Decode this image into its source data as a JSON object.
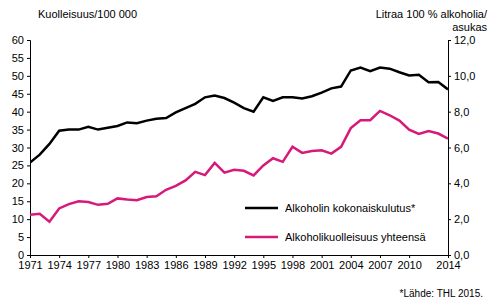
{
  "chart_data": {
    "type": "line",
    "y_label": "Kuolleisuus/100 000",
    "y2_label": [
      "Litraa 100 % alkoholia/",
      "asukas"
    ],
    "annotation": "*Lähde: THL 2015.",
    "x": [
      1971,
      1972,
      1973,
      1974,
      1975,
      1976,
      1977,
      1978,
      1979,
      1980,
      1981,
      1982,
      1983,
      1984,
      1985,
      1986,
      1987,
      1988,
      1989,
      1990,
      1991,
      1992,
      1993,
      1994,
      1995,
      1996,
      1997,
      1998,
      1999,
      2000,
      2001,
      2002,
      2003,
      2004,
      2005,
      2006,
      2007,
      2008,
      2009,
      2010,
      2011,
      2012,
      2013,
      2014
    ],
    "xlim": [
      1971,
      2014
    ],
    "xticks": [
      1971,
      1974,
      1977,
      1980,
      1983,
      1986,
      1989,
      1992,
      1995,
      1998,
      2001,
      2004,
      2007,
      2010,
      2014
    ],
    "ylim": [
      0,
      60
    ],
    "yticks": [
      0,
      5,
      10,
      15,
      20,
      25,
      30,
      35,
      40,
      45,
      50,
      55,
      60
    ],
    "y2lim": [
      0,
      12
    ],
    "y2ticks": [
      {
        "value": 0,
        "label": "0,0"
      },
      {
        "value": 2,
        "label": "2,0"
      },
      {
        "value": 4,
        "label": "4,0"
      },
      {
        "value": 6,
        "label": "6,0"
      },
      {
        "value": 8,
        "label": "8,0"
      },
      {
        "value": 10,
        "label": "10,0"
      },
      {
        "value": 12,
        "label": "12,0"
      }
    ],
    "grid": false,
    "legend": "right",
    "series": [
      {
        "name": "Alkoholin kokonaiskulutus*",
        "color": "#000000",
        "axis": "y2",
        "values": [
          5.16,
          5.6,
          6.2,
          6.94,
          7.0,
          7.0,
          7.16,
          7.0,
          7.1,
          7.2,
          7.4,
          7.36,
          7.5,
          7.6,
          7.64,
          7.96,
          8.2,
          8.44,
          8.8,
          8.9,
          8.76,
          8.5,
          8.2,
          8.0,
          8.8,
          8.6,
          8.8,
          8.8,
          8.74,
          8.86,
          9.06,
          9.3,
          9.4,
          10.3,
          10.46,
          10.26,
          10.46,
          10.4,
          10.2,
          10.02,
          10.06,
          9.64,
          9.66,
          9.24
        ]
      },
      {
        "name": "Alkoholikuolleisuus yhteensä",
        "color": "#d6197b",
        "values": [
          11.2,
          11.5,
          9.3,
          13,
          14.2,
          15,
          14.8,
          14,
          14.3,
          15.8,
          15.5,
          15.3,
          16.2,
          16.4,
          18.2,
          19.3,
          20.8,
          23.2,
          22.3,
          25.7,
          23,
          23.8,
          23.5,
          22.2,
          25,
          27,
          26,
          30.2,
          28.5,
          29,
          29.2,
          28.3,
          30.2,
          35.4,
          37.6,
          37.6,
          40.2,
          39,
          37.5,
          35,
          33.8,
          34.6,
          33.9,
          32.5
        ]
      }
    ]
  }
}
